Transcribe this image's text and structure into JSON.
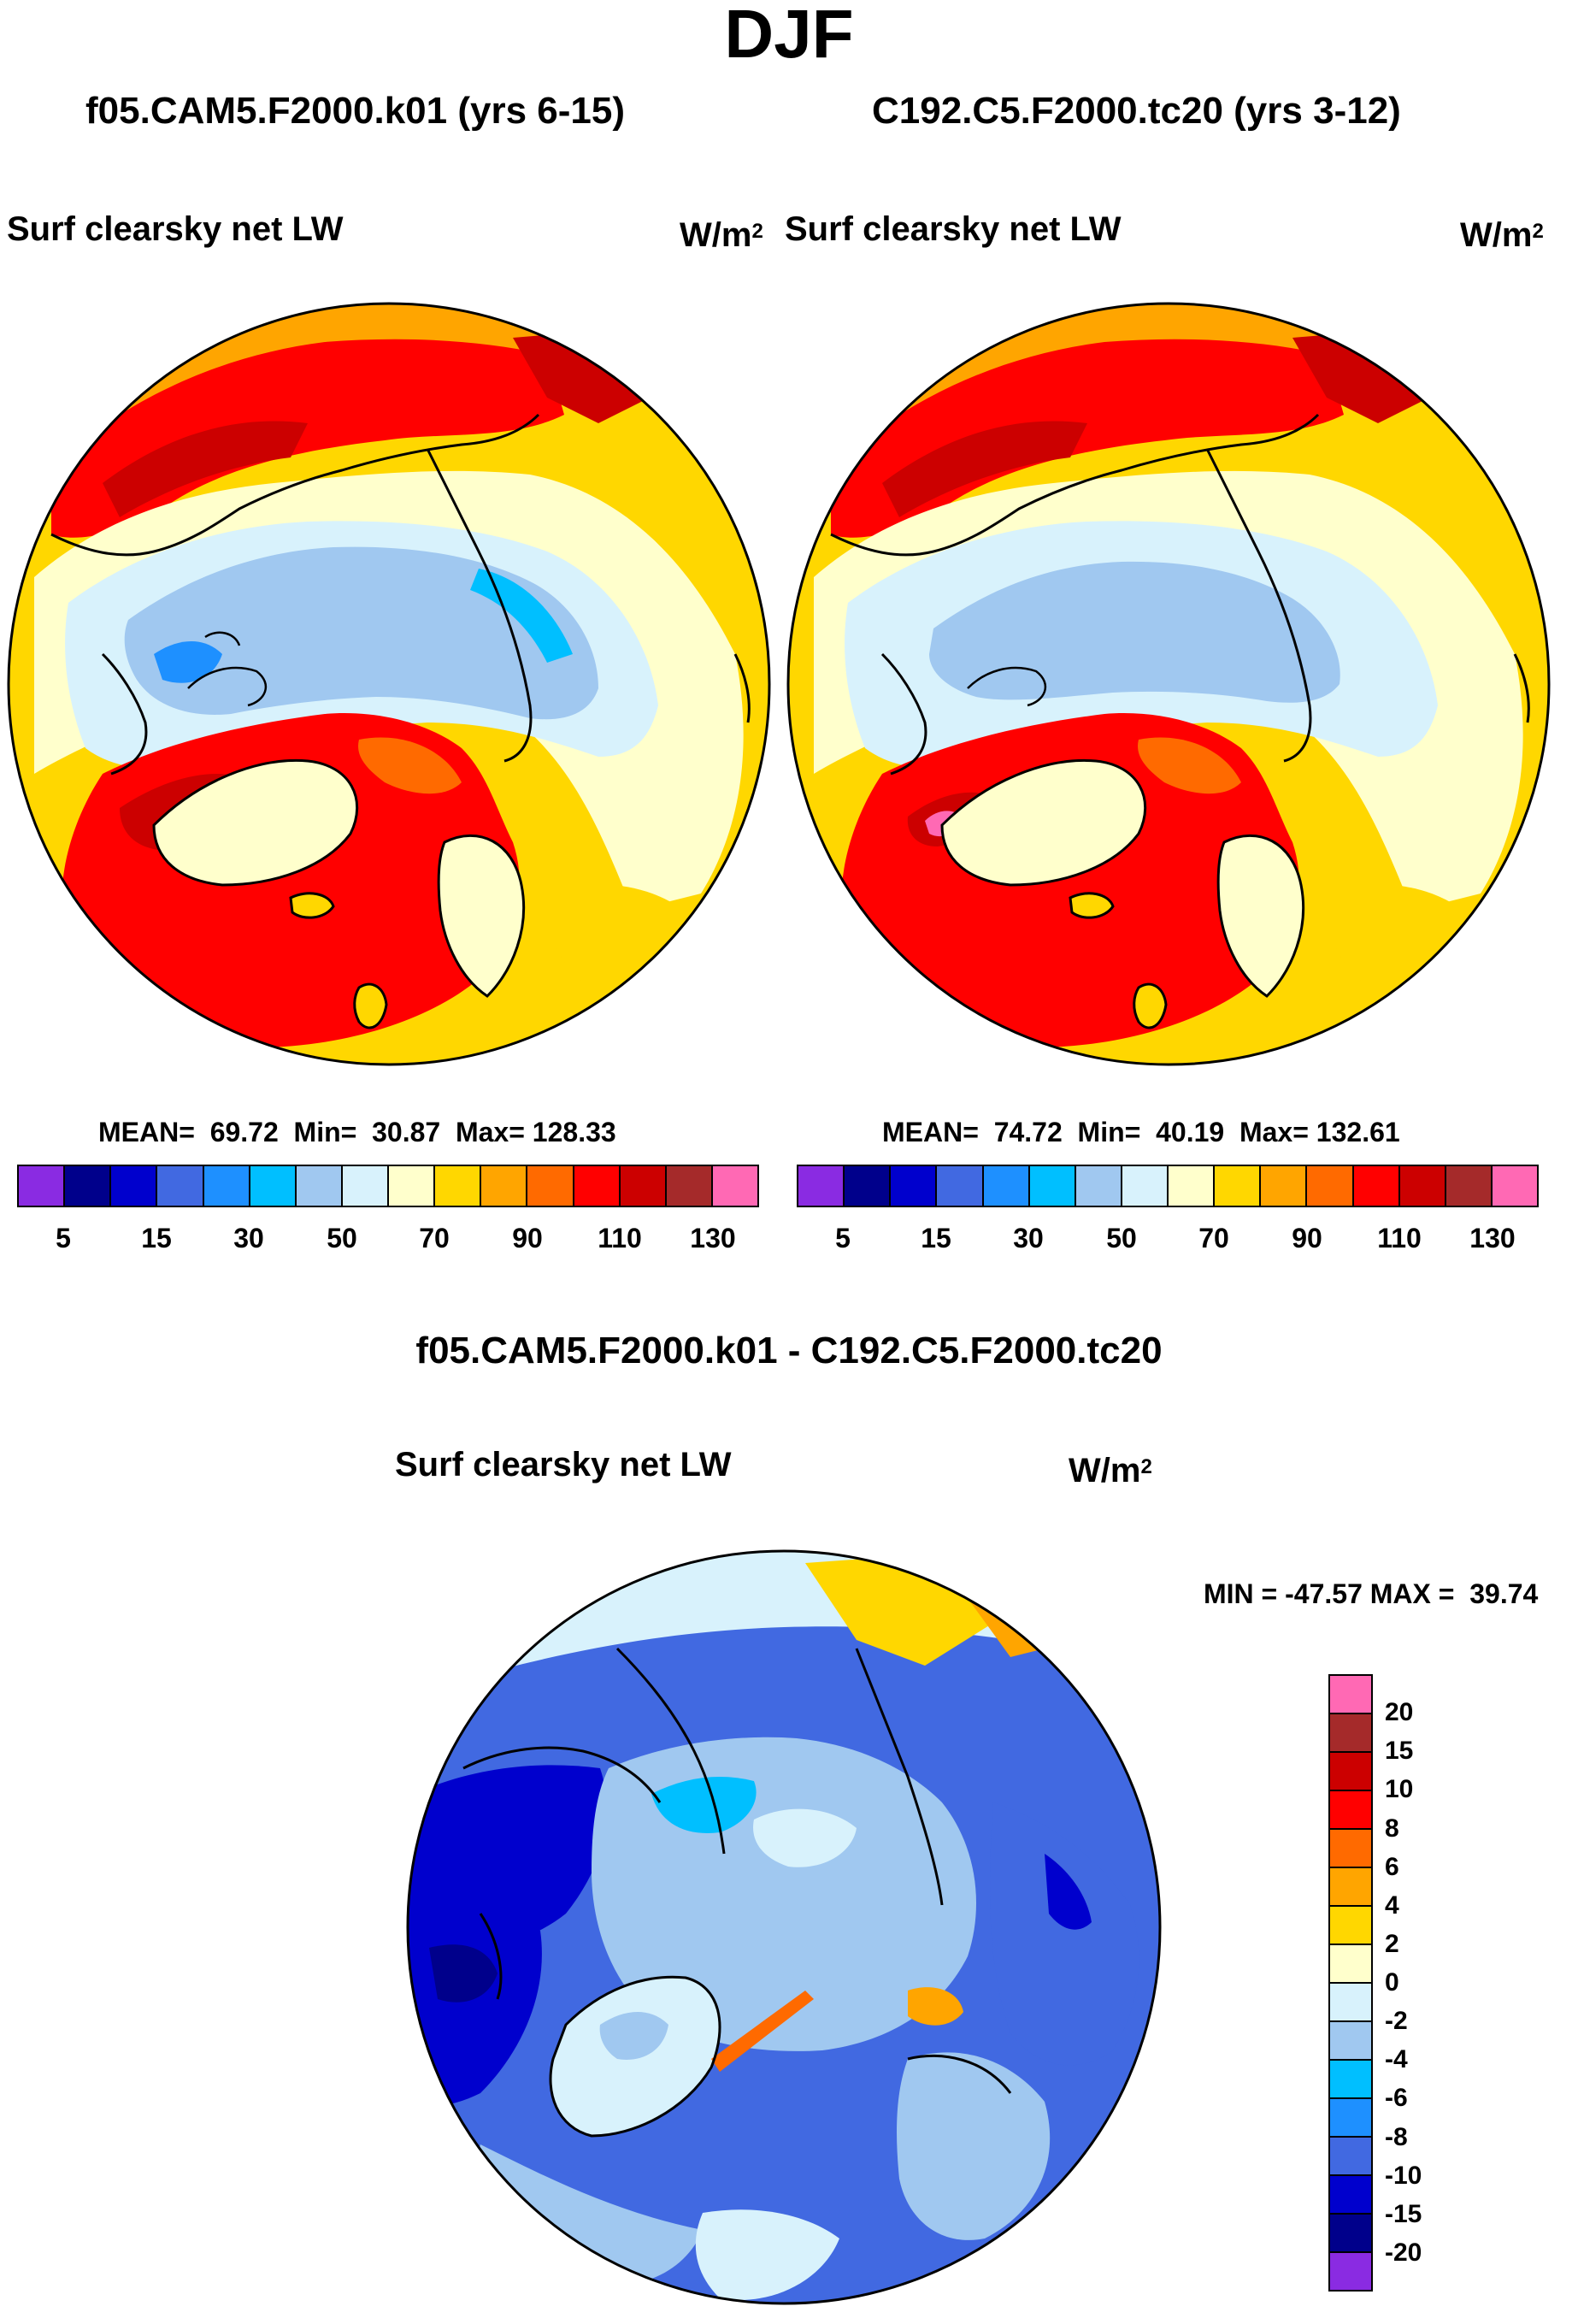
{
  "figure": {
    "season": "DJF",
    "panels": [
      {
        "title": "f05.CAM5.F2000.k01 (yrs 6-15)",
        "field": "Surf clearsky net LW",
        "units_base": "W/m",
        "units_exp": "2",
        "stats": "MEAN=  69.72  Min=  30.87  Max= 128.33"
      },
      {
        "title": "C192.C5.F2000.tc20 (yrs 3-12)",
        "field": "Surf clearsky net LW",
        "units_base": "W/m",
        "units_exp": "2",
        "stats": "MEAN=  74.72  Min=  40.19  Max= 132.61"
      }
    ],
    "diff": {
      "title": "f05.CAM5.F2000.k01 - C192.C5.F2000.tc20",
      "field": "Surf clearsky net LW",
      "units_base": "W/m",
      "units_exp": "2",
      "stats": "MIN = -47.57 MAX =  39.74"
    },
    "colorbar_main": {
      "colors": [
        "#8a2be2",
        "#00008b",
        "#0000cd",
        "#4169e1",
        "#1e90ff",
        "#00bfff",
        "#a0c8f0",
        "#d8f2fc",
        "#ffffcc",
        "#ffd700",
        "#ffa500",
        "#ff6a00",
        "#ff0000",
        "#cc0000",
        "#a52a2a",
        "#ff69b4"
      ],
      "tick_labels": [
        "5",
        "15",
        "30",
        "50",
        "70",
        "90",
        "110",
        "130"
      ]
    },
    "colorbar_diff": {
      "colors_top_to_bottom": [
        "#ff69b4",
        "#a52a2a",
        "#cc0000",
        "#ff0000",
        "#ff6a00",
        "#ffa500",
        "#ffd700",
        "#ffffcc",
        "#d8f2fc",
        "#a0c8f0",
        "#00bfff",
        "#1e90ff",
        "#4169e1",
        "#0000cd",
        "#00008b",
        "#8a2be2"
      ],
      "tick_labels_top_to_bottom": [
        "20",
        "15",
        "10",
        "8",
        "6",
        "4",
        "2",
        "0",
        "-2",
        "-4",
        "-6",
        "-8",
        "-10",
        "-15",
        "-20"
      ]
    }
  }
}
